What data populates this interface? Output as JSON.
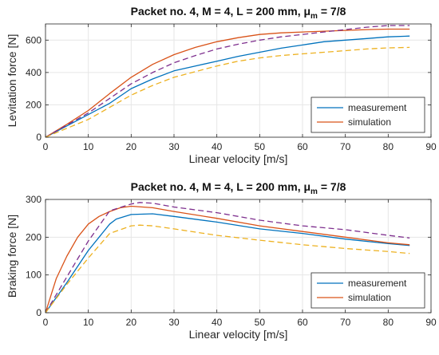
{
  "colors": {
    "measurement": "#0072BD",
    "simulation": "#D95319",
    "dashed_upper": "#7E2F8E",
    "dashed_lower": "#EDB120",
    "grid": "#e6e6e6",
    "axis": "#262626"
  },
  "chart_data": [
    {
      "type": "line",
      "title": "Packet no. 4, M = 4, L = 200 mm, μm = 7/8",
      "title_main": "Packet no. 4, M = 4, L = 200 mm, μ",
      "title_sub": "m",
      "title_tail": " = 7/8",
      "xlabel": "Linear velocity [m/s]",
      "ylabel": "Levitation force [N]",
      "xlim": [
        0,
        90
      ],
      "ylim": [
        0,
        700
      ],
      "xticks": [
        0,
        10,
        20,
        30,
        40,
        50,
        60,
        70,
        80,
        90
      ],
      "yticks": [
        0,
        200,
        400,
        600
      ],
      "grid": true,
      "legend_position": "bottom-right",
      "series": [
        {
          "name": "measurement",
          "style": "solid",
          "colorKey": "measurement",
          "x": [
            0,
            5,
            10,
            15,
            20,
            25,
            30,
            35,
            40,
            45,
            50,
            55,
            60,
            65,
            70,
            75,
            80,
            85
          ],
          "y": [
            0,
            70,
            140,
            210,
            300,
            360,
            410,
            440,
            470,
            500,
            525,
            550,
            570,
            590,
            600,
            610,
            620,
            625
          ]
        },
        {
          "name": "simulation",
          "style": "solid",
          "colorKey": "simulation",
          "x": [
            0,
            5,
            10,
            15,
            20,
            25,
            30,
            35,
            40,
            45,
            50,
            55,
            60,
            65,
            70,
            75,
            80,
            85
          ],
          "y": [
            0,
            80,
            165,
            270,
            370,
            450,
            510,
            555,
            590,
            615,
            635,
            645,
            650,
            655,
            660,
            665,
            668,
            668
          ]
        },
        {
          "name": "",
          "style": "dashed",
          "colorKey": "dashed_upper",
          "x": [
            0,
            5,
            10,
            15,
            20,
            25,
            30,
            35,
            40,
            45,
            50,
            55,
            60,
            65,
            70,
            75,
            80,
            85
          ],
          "y": [
            0,
            75,
            150,
            240,
            330,
            400,
            460,
            505,
            545,
            575,
            600,
            620,
            635,
            650,
            665,
            680,
            690,
            690
          ]
        },
        {
          "name": "",
          "style": "dashed",
          "colorKey": "dashed_lower",
          "x": [
            0,
            5,
            10,
            15,
            20,
            25,
            30,
            35,
            40,
            45,
            50,
            55,
            60,
            65,
            70,
            75,
            80,
            85
          ],
          "y": [
            0,
            55,
            110,
            185,
            260,
            320,
            370,
            405,
            440,
            470,
            490,
            505,
            515,
            525,
            535,
            545,
            552,
            555
          ]
        }
      ]
    },
    {
      "type": "line",
      "title": "Packet no. 4, M = 4, L = 200 mm, μm = 7/8",
      "title_main": "Packet no. 4, M = 4, L = 200 mm, μ",
      "title_sub": "m",
      "title_tail": " = 7/8",
      "xlabel": "Linear velocity [m/s]",
      "ylabel": "Braking force [N]",
      "xlim": [
        0,
        90
      ],
      "ylim": [
        0,
        300
      ],
      "xticks": [
        0,
        10,
        20,
        30,
        40,
        50,
        60,
        70,
        80,
        90
      ],
      "yticks": [
        0,
        100,
        200,
        300
      ],
      "grid": true,
      "legend_position": "bottom-right",
      "series": [
        {
          "name": "measurement",
          "style": "solid",
          "colorKey": "measurement",
          "x": [
            0,
            5,
            10,
            15,
            16.5,
            20,
            25,
            30,
            40,
            50,
            60,
            70,
            80,
            85
          ],
          "y": [
            0,
            80,
            165,
            235,
            248,
            260,
            262,
            255,
            240,
            222,
            210,
            195,
            183,
            178
          ]
        },
        {
          "name": "simulation",
          "style": "solid",
          "colorKey": "simulation",
          "x": [
            0,
            2.5,
            5,
            7.5,
            10,
            12.5,
            15,
            17.5,
            20,
            25,
            30,
            40,
            50,
            60,
            70,
            80,
            85
          ],
          "y": [
            0,
            90,
            150,
            200,
            235,
            255,
            268,
            278,
            282,
            278,
            268,
            250,
            230,
            215,
            200,
            185,
            180
          ]
        },
        {
          "name": "",
          "style": "dashed",
          "colorKey": "dashed_upper",
          "x": [
            0,
            5,
            10,
            15,
            20,
            22,
            25,
            30,
            40,
            50,
            60,
            70,
            80,
            85
          ],
          "y": [
            0,
            95,
            190,
            270,
            288,
            292,
            290,
            280,
            265,
            245,
            230,
            220,
            205,
            198
          ]
        },
        {
          "name": "",
          "style": "dashed",
          "colorKey": "dashed_lower",
          "x": [
            0,
            5,
            10,
            15,
            20,
            22,
            25,
            30,
            40,
            50,
            60,
            70,
            80,
            85
          ],
          "y": [
            0,
            75,
            145,
            210,
            230,
            232,
            230,
            222,
            205,
            192,
            180,
            170,
            162,
            157
          ]
        }
      ]
    }
  ]
}
